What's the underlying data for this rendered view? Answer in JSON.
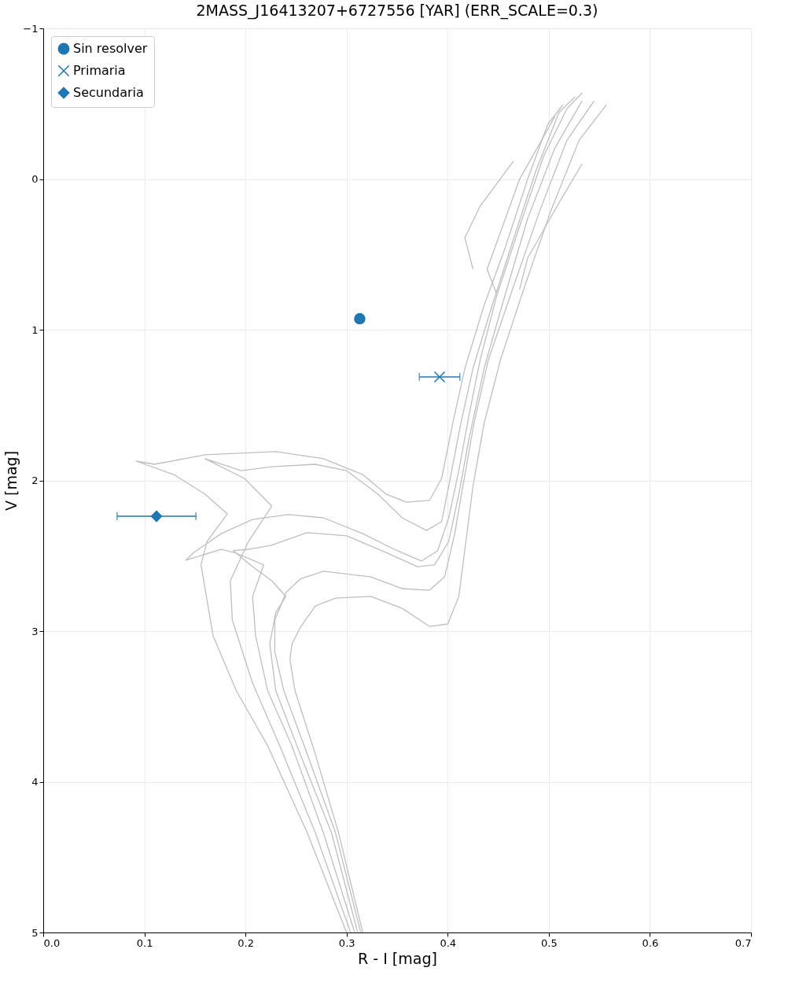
{
  "chart_data": {
    "type": "scatter",
    "title": "2MASS_J16413207+6727556  [YAR]   (ERR_SCALE=0.3)",
    "xlabel": "R - I [mag]",
    "ylabel": "V [mag]",
    "xlim": [
      0,
      0.7
    ],
    "ylim": [
      5,
      -1
    ],
    "xticks": [
      {
        "value": 0,
        "label": "0.0"
      },
      {
        "value": 0.1,
        "label": "0.1"
      },
      {
        "value": 0.2,
        "label": "0.2"
      },
      {
        "value": 0.3,
        "label": "0.3"
      },
      {
        "value": 0.4,
        "label": "0.4"
      },
      {
        "value": 0.5,
        "label": "0.5"
      },
      {
        "value": 0.6,
        "label": "0.6"
      },
      {
        "value": 0.7,
        "label": "0.7"
      }
    ],
    "yticks": [
      {
        "value": -1,
        "label": "−1"
      },
      {
        "value": 0,
        "label": "0"
      },
      {
        "value": 1,
        "label": "1"
      },
      {
        "value": 2,
        "label": "2"
      },
      {
        "value": 3,
        "label": "3"
      },
      {
        "value": 4,
        "label": "4"
      },
      {
        "value": 5,
        "label": "5"
      }
    ],
    "grid": true,
    "legend": "top left",
    "series": [
      {
        "type": "line",
        "color": "#bfbfbf",
        "x": [
          0.3,
          0.261,
          0.222,
          0.191,
          0.168,
          0.156,
          0.162,
          0.182,
          0.16,
          0.129,
          0.092,
          0.11,
          0.16,
          0.23,
          0.277,
          0.316,
          0.339,
          0.359,
          0.382,
          0.394,
          0.405,
          0.417,
          0.436,
          0.456,
          0.479,
          0.499,
          0.514
        ],
        "values": [
          5.0,
          4.337,
          3.762,
          3.397,
          3.031,
          2.561,
          2.405,
          2.222,
          2.091,
          1.961,
          1.872,
          1.893,
          1.83,
          1.809,
          1.856,
          1.961,
          2.091,
          2.144,
          2.133,
          1.987,
          1.621,
          1.256,
          0.838,
          0.473,
          0.003,
          -0.363,
          -0.493
        ]
      },
      {
        "type": "line",
        "color": "#bfbfbf",
        "x": [
          0.304,
          0.269,
          0.234,
          0.207,
          0.187,
          0.185,
          0.203,
          0.226,
          0.199,
          0.16,
          0.196,
          0.226,
          0.269,
          0.3,
          0.331,
          0.355,
          0.379,
          0.394,
          0.401,
          0.413,
          0.425,
          0.444,
          0.464,
          0.487,
          0.51,
          0.526
        ],
        "values": [
          5.0,
          4.337,
          3.762,
          3.345,
          2.927,
          2.666,
          2.405,
          2.17,
          1.987,
          1.856,
          1.935,
          1.909,
          1.893,
          1.935,
          2.091,
          2.248,
          2.332,
          2.274,
          2.039,
          1.621,
          1.256,
          0.838,
          0.42,
          -0.05,
          -0.441,
          -0.546
        ]
      },
      {
        "type": "line",
        "color": "#bfbfbf",
        "x": [
          0.308,
          0.277,
          0.246,
          0.222,
          0.21,
          0.207,
          0.218,
          0.191,
          0.176,
          0.141,
          0.148,
          0.176,
          0.207,
          0.242,
          0.277,
          0.316,
          0.347,
          0.374,
          0.39,
          0.401,
          0.411,
          0.421,
          0.432,
          0.448,
          0.471,
          0.495,
          0.518,
          0.533
        ],
        "values": [
          5.0,
          4.337,
          3.762,
          3.397,
          3.031,
          2.77,
          2.561,
          2.483,
          2.457,
          2.53,
          2.483,
          2.353,
          2.259,
          2.227,
          2.248,
          2.353,
          2.457,
          2.535,
          2.467,
          2.248,
          1.935,
          1.569,
          1.204,
          0.786,
          0.316,
          -0.154,
          -0.467,
          -0.572
        ]
      },
      {
        "type": "line",
        "color": "#bfbfbf",
        "x": [
          0.311,
          0.285,
          0.254,
          0.23,
          0.224,
          0.23,
          0.24,
          0.226,
          0.207,
          0.188,
          0.203,
          0.225,
          0.261,
          0.3,
          0.339,
          0.37,
          0.387,
          0.401,
          0.411,
          0.421,
          0.436,
          0.456,
          0.479,
          0.506,
          0.533
        ],
        "values": [
          5.0,
          4.337,
          3.815,
          3.397,
          3.084,
          2.875,
          2.77,
          2.666,
          2.572,
          2.467,
          2.457,
          2.431,
          2.347,
          2.368,
          2.478,
          2.572,
          2.561,
          2.405,
          2.091,
          1.726,
          1.256,
          0.786,
          0.264,
          -0.206,
          -0.52
        ]
      },
      {
        "type": "line",
        "color": "#bfbfbf",
        "x": [
          0.314,
          0.289,
          0.261,
          0.238,
          0.229,
          0.229,
          0.24,
          0.254,
          0.277,
          0.324,
          0.355,
          0.382,
          0.397,
          0.407,
          0.415,
          0.426,
          0.44,
          0.464,
          0.491,
          0.518,
          0.545
        ],
        "values": [
          5.0,
          4.337,
          3.815,
          3.397,
          3.136,
          2.927,
          2.744,
          2.655,
          2.603,
          2.64,
          2.718,
          2.729,
          2.64,
          2.352,
          2.039,
          1.621,
          1.204,
          0.734,
          0.211,
          -0.258,
          -0.52
        ]
      },
      {
        "type": "line",
        "color": "#bfbfbf",
        "x": [
          0.316,
          0.292,
          0.269,
          0.249,
          0.244,
          0.246,
          0.254,
          0.269,
          0.289,
          0.324,
          0.355,
          0.382,
          0.4,
          0.411,
          0.417,
          0.425,
          0.436,
          0.452,
          0.475,
          0.502,
          0.53,
          0.557
        ],
        "values": [
          5.0,
          4.337,
          3.815,
          3.397,
          3.188,
          3.084,
          2.979,
          2.833,
          2.781,
          2.77,
          2.849,
          2.969,
          2.953,
          2.77,
          2.457,
          2.039,
          1.621,
          1.204,
          0.734,
          0.211,
          -0.258,
          -0.493
        ]
      },
      {
        "type": "line",
        "color": "#bfbfbf",
        "x": [
          0.425,
          0.417,
          0.432,
          0.465
        ],
        "values": [
          0.598,
          0.389,
          0.18,
          -0.118
        ]
      },
      {
        "type": "line",
        "color": "#bfbfbf",
        "x": [
          0.448,
          0.439,
          0.471,
          0.506
        ],
        "values": [
          0.755,
          0.598,
          0.003,
          -0.415
        ]
      },
      {
        "type": "line",
        "color": "#bfbfbf",
        "x": [
          0.471,
          0.479,
          0.51,
          0.533
        ],
        "values": [
          0.734,
          0.525,
          0.159,
          -0.102
        ]
      },
      {
        "name": "Sin resolver",
        "color": "#1f77b4",
        "marker": "circle",
        "x": [
          0.313
        ],
        "values": [
          0.927
        ]
      },
      {
        "name": "Primaria",
        "color": "#1f77b4",
        "marker": "cross",
        "x": [
          0.392
        ],
        "values": [
          1.313
        ],
        "xerrors": [
          0.02
        ]
      },
      {
        "name": "Secundaria",
        "color": "#1f77b4",
        "marker": "diamond",
        "x": [
          0.112
        ],
        "values": [
          2.238
        ],
        "xerrors": [
          [
            0.073,
            0.151
          ]
        ]
      }
    ]
  }
}
